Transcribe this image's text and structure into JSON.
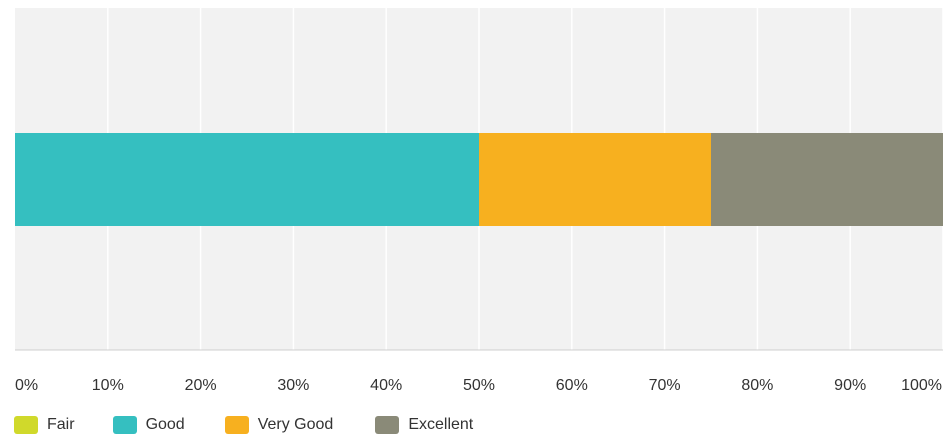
{
  "chart_data": {
    "type": "bar",
    "orientation": "horizontal",
    "stacked": true,
    "percent": true,
    "categories": [
      ""
    ],
    "series": [
      {
        "name": "Fair",
        "color": "#d0d92b",
        "values": [
          0
        ]
      },
      {
        "name": "Good",
        "color": "#35bfc0",
        "values": [
          50
        ]
      },
      {
        "name": "Very Good",
        "color": "#f7b01f",
        "values": [
          25
        ]
      },
      {
        "name": "Excellent",
        "color": "#8a8a78",
        "values": [
          25
        ]
      }
    ],
    "xlim": [
      0,
      100
    ],
    "x_ticks": [
      "0%",
      "10%",
      "20%",
      "30%",
      "40%",
      "50%",
      "60%",
      "70%",
      "80%",
      "90%",
      "100%"
    ],
    "grid": true,
    "legend_position": "bottom-left",
    "plot_background": "#f2f2f2"
  }
}
